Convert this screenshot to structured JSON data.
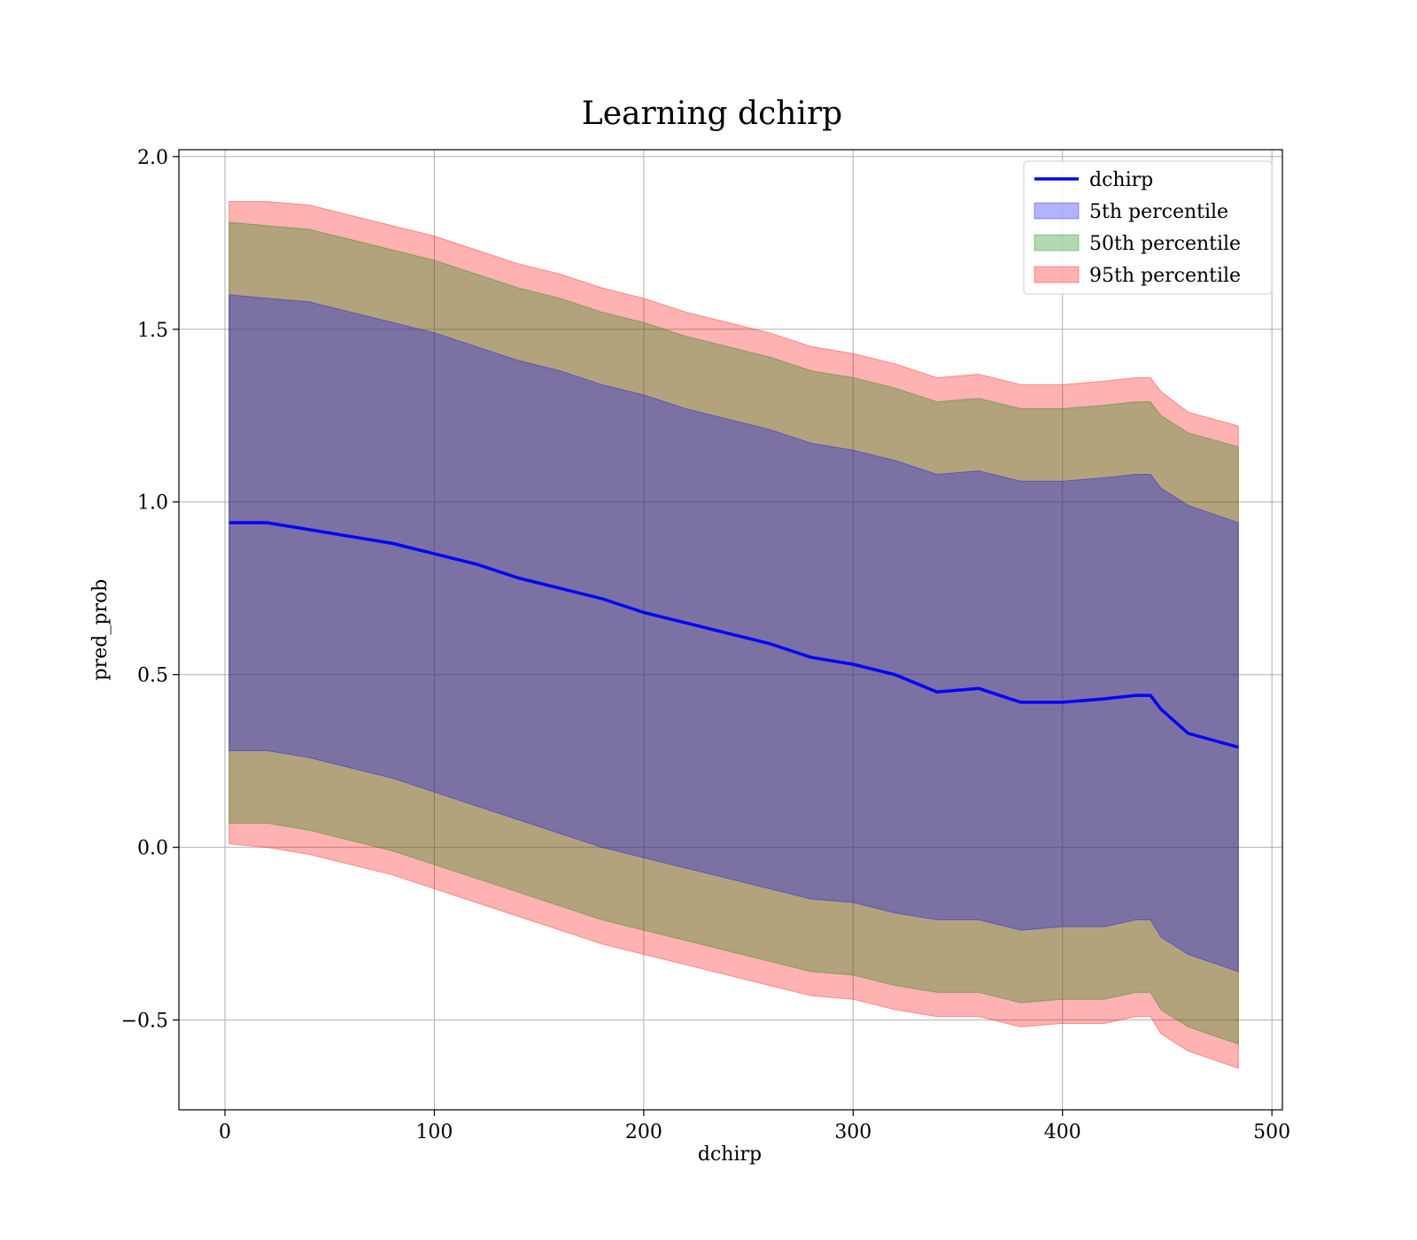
{
  "chart_data": {
    "type": "area",
    "title": "Learning dchirp",
    "xlabel": "dchirp",
    "ylabel": "pred_prob",
    "xlim": [
      -22,
      505
    ],
    "ylim": [
      -0.76,
      2.02
    ],
    "xticks": [
      0,
      100,
      200,
      300,
      400,
      500
    ],
    "yticks": [
      -0.5,
      0.0,
      0.5,
      1.0,
      1.5,
      2.0
    ],
    "xtick_labels": [
      "0",
      "100",
      "200",
      "300",
      "400",
      "500"
    ],
    "ytick_labels": [
      "−0.5",
      "0.0",
      "0.5",
      "1.0",
      "1.5",
      "2.0"
    ],
    "grid": true,
    "legend_position": "top-right",
    "x": [
      2,
      20,
      40,
      60,
      80,
      100,
      120,
      140,
      160,
      180,
      200,
      220,
      240,
      260,
      280,
      300,
      320,
      340,
      360,
      380,
      400,
      420,
      435,
      442,
      447,
      460,
      484
    ],
    "mean": {
      "name": "dchirp",
      "color": "#0000ff",
      "values": [
        0.94,
        0.94,
        0.92,
        0.9,
        0.88,
        0.85,
        0.82,
        0.78,
        0.75,
        0.72,
        0.68,
        0.65,
        0.62,
        0.59,
        0.55,
        0.53,
        0.5,
        0.45,
        0.46,
        0.42,
        0.42,
        0.43,
        0.44,
        0.44,
        0.4,
        0.33,
        0.29
      ]
    },
    "bands": [
      {
        "name": "95th percentile",
        "color": "#ff0000",
        "upper": [
          1.87,
          1.87,
          1.86,
          1.83,
          1.8,
          1.77,
          1.73,
          1.69,
          1.66,
          1.62,
          1.59,
          1.55,
          1.52,
          1.49,
          1.45,
          1.43,
          1.4,
          1.36,
          1.37,
          1.34,
          1.34,
          1.35,
          1.36,
          1.36,
          1.32,
          1.26,
          1.22
        ],
        "lower": [
          0.01,
          0.0,
          -0.02,
          -0.05,
          -0.08,
          -0.12,
          -0.16,
          -0.2,
          -0.24,
          -0.28,
          -0.31,
          -0.34,
          -0.37,
          -0.4,
          -0.43,
          -0.44,
          -0.47,
          -0.49,
          -0.49,
          -0.52,
          -0.51,
          -0.51,
          -0.49,
          -0.49,
          -0.54,
          -0.59,
          -0.64
        ]
      },
      {
        "name": "50th percentile",
        "color": "#008000",
        "upper": [
          1.81,
          1.8,
          1.79,
          1.76,
          1.73,
          1.7,
          1.66,
          1.62,
          1.59,
          1.55,
          1.52,
          1.48,
          1.45,
          1.42,
          1.38,
          1.36,
          1.33,
          1.29,
          1.3,
          1.27,
          1.27,
          1.28,
          1.29,
          1.29,
          1.25,
          1.2,
          1.16
        ],
        "lower": [
          0.07,
          0.07,
          0.05,
          0.02,
          -0.01,
          -0.05,
          -0.09,
          -0.13,
          -0.17,
          -0.21,
          -0.24,
          -0.27,
          -0.3,
          -0.33,
          -0.36,
          -0.37,
          -0.4,
          -0.42,
          -0.42,
          -0.45,
          -0.44,
          -0.44,
          -0.42,
          -0.42,
          -0.47,
          -0.52,
          -0.57
        ]
      },
      {
        "name": "5th percentile",
        "color": "#0000ff",
        "upper": [
          1.6,
          1.59,
          1.58,
          1.55,
          1.52,
          1.49,
          1.45,
          1.41,
          1.38,
          1.34,
          1.31,
          1.27,
          1.24,
          1.21,
          1.17,
          1.15,
          1.12,
          1.08,
          1.09,
          1.06,
          1.06,
          1.07,
          1.08,
          1.08,
          1.04,
          0.99,
          0.94
        ],
        "lower": [
          0.28,
          0.28,
          0.26,
          0.23,
          0.2,
          0.16,
          0.12,
          0.08,
          0.04,
          0.0,
          -0.03,
          -0.06,
          -0.09,
          -0.12,
          -0.15,
          -0.16,
          -0.19,
          -0.21,
          -0.21,
          -0.24,
          -0.23,
          -0.23,
          -0.21,
          -0.21,
          -0.26,
          -0.31,
          -0.36
        ]
      }
    ],
    "legend_order": [
      "dchirp",
      "5th percentile",
      "50th percentile",
      "95th percentile"
    ]
  }
}
